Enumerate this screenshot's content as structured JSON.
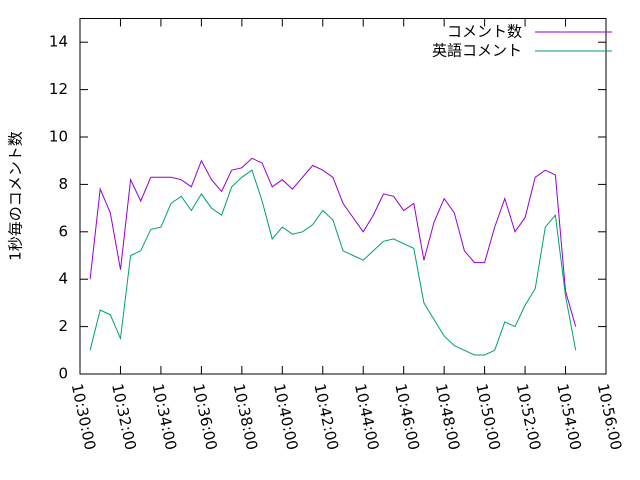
{
  "chart_data": {
    "type": "line",
    "ylabel": "1秒毎のコメント数",
    "x": [
      "10:30:30",
      "10:31:00",
      "10:31:30",
      "10:32:00",
      "10:32:30",
      "10:33:00",
      "10:33:30",
      "10:34:00",
      "10:34:30",
      "10:35:00",
      "10:35:30",
      "10:36:00",
      "10:36:30",
      "10:37:00",
      "10:37:30",
      "10:38:00",
      "10:38:30",
      "10:39:00",
      "10:39:30",
      "10:40:00",
      "10:40:30",
      "10:41:00",
      "10:41:30",
      "10:42:00",
      "10:42:30",
      "10:43:00",
      "10:43:30",
      "10:44:00",
      "10:44:30",
      "10:45:00",
      "10:45:30",
      "10:46:00",
      "10:46:30",
      "10:47:00",
      "10:47:30",
      "10:48:00",
      "10:48:30",
      "10:49:00",
      "10:49:30",
      "10:50:00",
      "10:50:30",
      "10:51:00",
      "10:51:30",
      "10:52:00",
      "10:52:30",
      "10:53:00",
      "10:53:30",
      "10:54:00",
      "10:54:30"
    ],
    "series": [
      {
        "name": "コメント数",
        "color": "#9400d3",
        "values": [
          4.0,
          7.8,
          6.8,
          4.4,
          8.2,
          7.3,
          8.3,
          8.3,
          8.3,
          8.2,
          7.9,
          9.0,
          8.2,
          7.7,
          8.6,
          8.7,
          9.1,
          8.9,
          7.9,
          8.2,
          7.8,
          8.3,
          8.8,
          8.6,
          8.3,
          7.2,
          6.6,
          6.0,
          6.7,
          7.6,
          7.5,
          6.9,
          7.2,
          4.8,
          6.4,
          7.4,
          6.8,
          5.2,
          4.7,
          4.7,
          6.2,
          7.4,
          6.0,
          6.6,
          8.3,
          8.6,
          8.4,
          3.5,
          2.0
        ]
      },
      {
        "name": "英語コメント",
        "color": "#009e73",
        "values": [
          1.0,
          2.7,
          2.5,
          1.5,
          5.0,
          5.2,
          6.1,
          6.2,
          7.2,
          7.5,
          6.9,
          7.6,
          7.0,
          6.7,
          7.9,
          8.3,
          8.6,
          7.3,
          5.7,
          6.2,
          5.9,
          6.0,
          6.3,
          6.9,
          6.5,
          5.2,
          5.0,
          4.8,
          5.2,
          5.6,
          5.7,
          5.5,
          5.3,
          3.0,
          2.3,
          1.6,
          1.2,
          1.0,
          0.8,
          0.8,
          1.0,
          2.2,
          2.0,
          2.9,
          3.6,
          6.2,
          6.7,
          3.3,
          1.0
        ]
      }
    ],
    "xlim": [
      "10:30:00",
      "10:56:00"
    ],
    "xticks": [
      "10:30:00",
      "10:32:00",
      "10:34:00",
      "10:36:00",
      "10:38:00",
      "10:40:00",
      "10:42:00",
      "10:44:00",
      "10:46:00",
      "10:48:00",
      "10:50:00",
      "10:52:00",
      "10:54:00",
      "10:56:00"
    ],
    "ylim": [
      0,
      15
    ],
    "yticks": [
      0,
      2,
      4,
      6,
      8,
      10,
      12,
      14
    ],
    "legend": "top-right"
  }
}
